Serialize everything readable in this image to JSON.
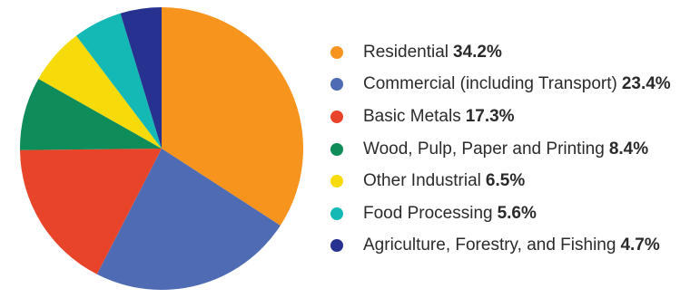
{
  "chart_data": {
    "type": "pie",
    "slices": [
      {
        "label": "Residential",
        "value": 34.2,
        "display": "34.2%",
        "color": "#F7941D"
      },
      {
        "label": "Commercial (including Transport)",
        "value": 23.4,
        "display": "23.4%",
        "color": "#4F6BB3"
      },
      {
        "label": "Basic Metals",
        "value": 17.3,
        "display": "17.3%",
        "color": "#E8442A"
      },
      {
        "label": "Wood, Pulp, Paper and Printing",
        "value": 8.4,
        "display": "8.4%",
        "color": "#0E8C5A"
      },
      {
        "label": "Other Industrial",
        "value": 6.5,
        "display": "6.5%",
        "color": "#F7DA0A"
      },
      {
        "label": "Food Processing",
        "value": 5.6,
        "display": "5.6%",
        "color": "#14B8B5"
      },
      {
        "label": "Agriculture, Forestry, and Fishing",
        "value": 4.7,
        "display": "4.7%",
        "color": "#27318F"
      }
    ],
    "start_angle": "12 o'clock",
    "direction": "clockwise",
    "legend_position": "right"
  }
}
